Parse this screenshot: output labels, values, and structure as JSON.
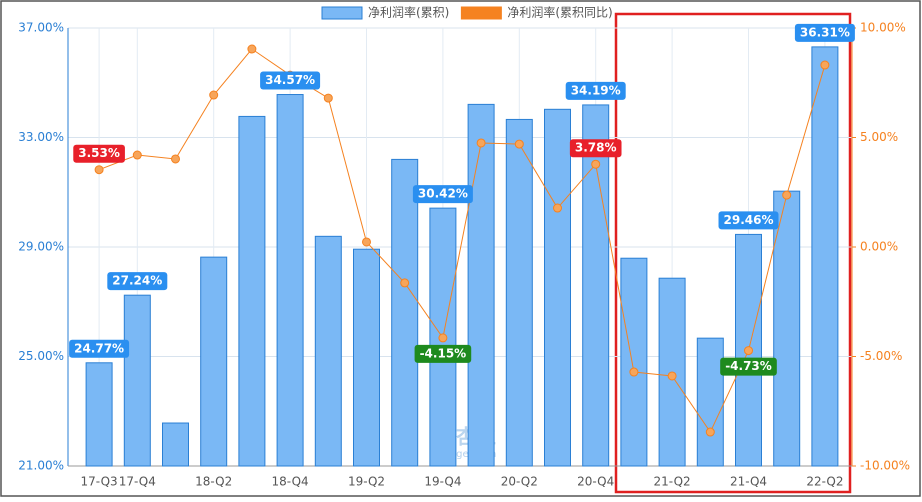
{
  "chart_data": {
    "type": "bar-line",
    "legend": [
      {
        "name": "净利润率(累积)",
        "color": "#7ab8f5"
      },
      {
        "name": "净利润率(累积同比)",
        "color": "#f58220"
      }
    ],
    "categories": [
      "17-Q3",
      "17-Q4",
      null,
      "18-Q2",
      null,
      "18-Q4",
      null,
      "19-Q2",
      null,
      "19-Q4",
      null,
      "20-Q2",
      null,
      "20-Q4",
      null,
      "21-Q2",
      null,
      "21-Q4",
      null,
      "22-Q2"
    ],
    "series": [
      {
        "name": "净利润率(累积)",
        "color": "#7ab8f5",
        "axis": "y",
        "values": [
          24.77,
          27.24,
          22.57,
          28.63,
          33.77,
          34.57,
          29.39,
          28.92,
          32.2,
          30.42,
          34.21,
          33.66,
          34.03,
          34.19,
          28.59,
          27.86,
          25.67,
          29.46,
          31.04,
          36.31
        ],
        "value_labels": [
          "24.77%",
          "27.24%",
          null,
          null,
          null,
          "34.57%",
          null,
          null,
          null,
          "30.42%",
          null,
          null,
          null,
          "34.19%",
          null,
          null,
          null,
          "29.46%",
          null,
          "36.31%"
        ]
      },
      {
        "name": "净利润率(累积同比)",
        "color": "#f58220",
        "axis": "y2",
        "values": [
          3.53,
          4.2,
          4.02,
          6.94,
          9.04,
          7.85,
          6.8,
          0.23,
          -1.64,
          -4.15,
          4.75,
          4.7,
          1.78,
          3.78,
          -5.71,
          -5.89,
          -8.45,
          -4.73,
          2.37,
          8.31
        ],
        "value_labels": [
          "3.53%",
          null,
          null,
          null,
          null,
          null,
          null,
          null,
          null,
          "-4.15%",
          null,
          null,
          null,
          "3.78%",
          null,
          null,
          null,
          "-4.73%",
          null,
          null
        ]
      }
    ],
    "ylim": [
      21,
      37
    ],
    "yticks": [
      {
        "value": 21,
        "label": "21.00%"
      },
      {
        "value": 25,
        "label": "25.00%"
      },
      {
        "value": 29,
        "label": "29.00%"
      },
      {
        "value": 33,
        "label": "33.00%"
      },
      {
        "value": 37,
        "label": "37.00%"
      }
    ],
    "y2lim": [
      -10,
      10
    ],
    "y2ticks": [
      {
        "value": -10,
        "label": "-10.00%"
      },
      {
        "value": -5,
        "label": "-5.00%"
      },
      {
        "value": 0,
        "label": "0.00%"
      },
      {
        "value": 5,
        "label": "5.00%"
      },
      {
        "value": 10,
        "label": "10.00%"
      }
    ],
    "grid": true,
    "watermark": {
      "title": "理杏仁",
      "subtitle": "lixinger.com"
    }
  }
}
